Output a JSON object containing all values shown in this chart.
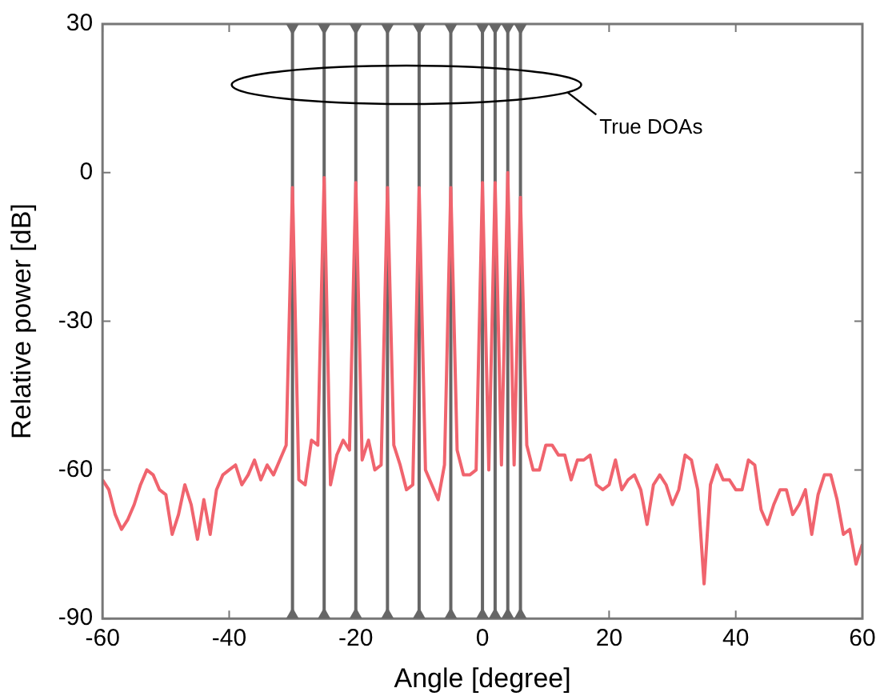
{
  "chart_data": {
    "type": "line",
    "xlabel": "Angle [degree]",
    "ylabel": "Relative power [dB]",
    "x": [
      -60,
      -59,
      -58,
      -57,
      -56,
      -55,
      -54,
      -53,
      -52,
      -51,
      -50,
      -49,
      -48,
      -47,
      -46,
      -45,
      -44,
      -43,
      -42,
      -41,
      -40,
      -39,
      -38,
      -37,
      -36,
      -35,
      -34,
      -33,
      -32,
      -31,
      -30,
      -29,
      -28,
      -27,
      -26,
      -25,
      -24,
      -23,
      -22,
      -21,
      -20,
      -19,
      -18,
      -17,
      -16,
      -15,
      -14,
      -13,
      -12,
      -11,
      -10,
      -9,
      -8,
      -7,
      -6,
      -5,
      -4,
      -3,
      -2,
      -1,
      0,
      1,
      2,
      3,
      4,
      5,
      6,
      7,
      8,
      9,
      10,
      11,
      12,
      13,
      14,
      15,
      16,
      17,
      18,
      19,
      20,
      21,
      22,
      23,
      24,
      25,
      26,
      27,
      28,
      29,
      30,
      31,
      32,
      33,
      34,
      35,
      36,
      37,
      38,
      39,
      40,
      41,
      42,
      43,
      44,
      45,
      46,
      47,
      48,
      49,
      50,
      51,
      52,
      53,
      54,
      55,
      56,
      57,
      58,
      59,
      60
    ],
    "series": [
      {
        "color": "#f0646e",
        "values": [
          -62,
          -64,
          -69,
          -72,
          -70,
          -67,
          -63,
          -60,
          -61,
          -64,
          -65,
          -73,
          -69,
          -63,
          -67,
          -74,
          -66,
          -73,
          -64,
          -61,
          -60,
          -59,
          -63,
          -61,
          -58,
          -62,
          -59,
          -61,
          -58,
          -55,
          -3,
          -62,
          -63,
          -54,
          -55,
          -1,
          -63,
          -57,
          -54,
          -56,
          -2,
          -58,
          -54,
          -60,
          -59,
          -3,
          -55,
          -59,
          -64,
          -63,
          -3,
          -60,
          -63,
          -66,
          -59,
          -3,
          -56,
          -61,
          -61,
          -60,
          -2,
          -60,
          -2,
          -59,
          0,
          -59,
          -5,
          -55,
          -60,
          -60,
          -55,
          -55,
          -57,
          -57,
          -62,
          -58,
          -58,
          -57,
          -63,
          -64,
          -63,
          -58,
          -64,
          -62,
          -61,
          -64,
          -71,
          -63,
          -61,
          -63,
          -67,
          -64,
          -57,
          -58,
          -64,
          -83,
          -63,
          -59,
          -62,
          -62,
          -64,
          -64,
          -58,
          -59,
          -68,
          -71,
          -67,
          -64,
          -64,
          -69,
          -67,
          -64,
          -73,
          -65,
          -61,
          -61,
          -66,
          -73,
          -72,
          -79,
          -75
        ]
      }
    ],
    "xlim": [
      -60,
      60
    ],
    "xticks": [
      -60,
      -40,
      -20,
      0,
      20,
      40,
      60
    ],
    "ylim": [
      -90,
      30
    ],
    "yticks": [
      -90,
      -60,
      -30,
      0,
      30
    ],
    "grid": false,
    "legend": false,
    "marker": "none",
    "line_style": "solid",
    "ref_lines": [
      {
        "axis": "x",
        "value": -30,
        "color": "#666666"
      },
      {
        "axis": "x",
        "value": -25,
        "color": "#666666"
      },
      {
        "axis": "x",
        "value": -20,
        "color": "#666666"
      },
      {
        "axis": "x",
        "value": -15,
        "color": "#666666"
      },
      {
        "axis": "x",
        "value": -10,
        "color": "#666666"
      },
      {
        "axis": "x",
        "value": -5,
        "color": "#666666"
      },
      {
        "axis": "x",
        "value": 0,
        "color": "#666666"
      },
      {
        "axis": "x",
        "value": 2,
        "color": "#666666"
      },
      {
        "axis": "x",
        "value": 4,
        "color": "#666666"
      },
      {
        "axis": "x",
        "value": 6,
        "color": "#666666"
      }
    ],
    "annotations": [
      "True DOAs"
    ]
  }
}
